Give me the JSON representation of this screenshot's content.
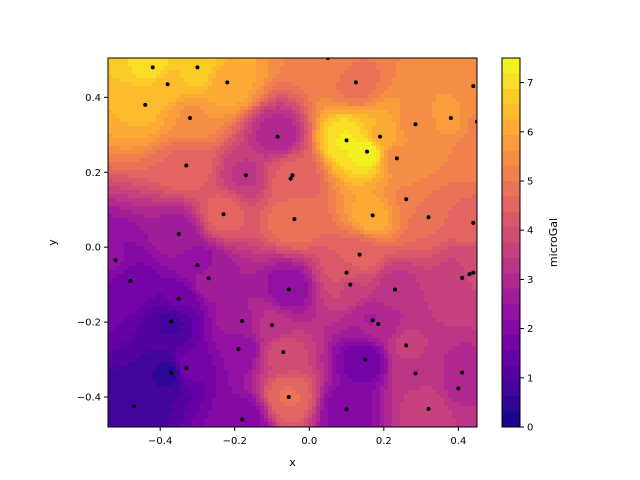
{
  "chart_data": {
    "type": "heatmap",
    "subtype": "filled-contour-triangulation",
    "xlabel": "x",
    "ylabel": "y",
    "xlim": [
      -0.54,
      0.45
    ],
    "ylim": [
      -0.48,
      0.505
    ],
    "xticks": [
      -0.4,
      -0.2,
      0.0,
      0.2,
      0.4
    ],
    "xtick_labels": [
      "−0.4",
      "−0.2",
      "0.0",
      "0.2",
      "0.4"
    ],
    "yticks": [
      -0.4,
      -0.2,
      0.0,
      0.2,
      0.4
    ],
    "ytick_labels": [
      "−0.4",
      "−0.2",
      "0.0",
      "0.2",
      "0.4"
    ],
    "colorbar": {
      "label": "microGal",
      "range": [
        0,
        7.5
      ],
      "ticks": [
        0,
        1,
        2,
        3,
        4,
        5,
        6,
        7
      ],
      "tick_labels": [
        "0",
        "1",
        "2",
        "3",
        "4",
        "5",
        "6",
        "7"
      ],
      "colormap": "plasma",
      "levels": 24
    },
    "points": [
      {
        "x": -0.42,
        "y": 0.48,
        "v": 7.0
      },
      {
        "x": -0.38,
        "y": 0.435,
        "v": 6.4
      },
      {
        "x": -0.3,
        "y": 0.48,
        "v": 6.8
      },
      {
        "x": -0.22,
        "y": 0.44,
        "v": 6.1
      },
      {
        "x": 0.05,
        "y": 0.505,
        "v": 5.3
      },
      {
        "x": 0.125,
        "y": 0.44,
        "v": 4.9
      },
      {
        "x": 0.44,
        "y": 0.43,
        "v": 5.6
      },
      {
        "x": -0.44,
        "y": 0.38,
        "v": 6.3
      },
      {
        "x": -0.32,
        "y": 0.345,
        "v": 5.6
      },
      {
        "x": 0.38,
        "y": 0.345,
        "v": 5.7
      },
      {
        "x": 0.285,
        "y": 0.328,
        "v": 5.5
      },
      {
        "x": 0.45,
        "y": 0.335,
        "v": 5.3
      },
      {
        "x": -0.085,
        "y": 0.295,
        "v": 2.9
      },
      {
        "x": 0.1,
        "y": 0.285,
        "v": 7.2
      },
      {
        "x": 0.19,
        "y": 0.295,
        "v": 6.2
      },
      {
        "x": 0.155,
        "y": 0.255,
        "v": 7.4
      },
      {
        "x": 0.455,
        "y": 0.255,
        "v": 5.1
      },
      {
        "x": 0.235,
        "y": 0.237,
        "v": 5.5
      },
      {
        "x": -0.33,
        "y": 0.218,
        "v": 4.6
      },
      {
        "x": -0.17,
        "y": 0.192,
        "v": 3.4
      },
      {
        "x": -0.045,
        "y": 0.192,
        "v": 4.4
      },
      {
        "x": -0.05,
        "y": 0.183,
        "v": 4.5
      },
      {
        "x": 0.26,
        "y": 0.128,
        "v": 5.3
      },
      {
        "x": -0.23,
        "y": 0.088,
        "v": 4.5
      },
      {
        "x": 0.17,
        "y": 0.085,
        "v": 6.1
      },
      {
        "x": 0.32,
        "y": 0.08,
        "v": 4.7
      },
      {
        "x": -0.04,
        "y": 0.075,
        "v": 5.0
      },
      {
        "x": 0.44,
        "y": 0.065,
        "v": 4.6
      },
      {
        "x": -0.35,
        "y": 0.035,
        "v": 2.7
      },
      {
        "x": 0.135,
        "y": -0.02,
        "v": 4.6
      },
      {
        "x": -0.52,
        "y": -0.035,
        "v": 2.2
      },
      {
        "x": -0.3,
        "y": -0.048,
        "v": 2.3
      },
      {
        "x": 0.1,
        "y": -0.068,
        "v": 4.3
      },
      {
        "x": 0.44,
        "y": -0.068,
        "v": 3.8
      },
      {
        "x": 0.43,
        "y": -0.072,
        "v": 3.9
      },
      {
        "x": 0.41,
        "y": -0.082,
        "v": 3.5
      },
      {
        "x": -0.27,
        "y": -0.083,
        "v": 2.8
      },
      {
        "x": -0.48,
        "y": -0.09,
        "v": 1.7
      },
      {
        "x": 0.11,
        "y": -0.1,
        "v": 3.7
      },
      {
        "x": -0.055,
        "y": -0.113,
        "v": 2.3
      },
      {
        "x": 0.23,
        "y": -0.113,
        "v": 3.3
      },
      {
        "x": -0.35,
        "y": -0.138,
        "v": 1.6
      },
      {
        "x": -0.18,
        "y": -0.197,
        "v": 2.8
      },
      {
        "x": -0.37,
        "y": -0.198,
        "v": 0.9
      },
      {
        "x": 0.17,
        "y": -0.195,
        "v": 2.8
      },
      {
        "x": 0.185,
        "y": -0.205,
        "v": 2.9
      },
      {
        "x": -0.1,
        "y": -0.208,
        "v": 3.2
      },
      {
        "x": 0.26,
        "y": -0.262,
        "v": 3.5
      },
      {
        "x": -0.19,
        "y": -0.272,
        "v": 2.2
      },
      {
        "x": -0.07,
        "y": -0.28,
        "v": 3.9
      },
      {
        "x": 0.15,
        "y": -0.3,
        "v": 1.6
      },
      {
        "x": -0.33,
        "y": -0.323,
        "v": 1.7
      },
      {
        "x": -0.37,
        "y": -0.335,
        "v": 0.5
      },
      {
        "x": 0.285,
        "y": -0.337,
        "v": 3.4
      },
      {
        "x": 0.41,
        "y": -0.335,
        "v": 3.0
      },
      {
        "x": 0.4,
        "y": -0.377,
        "v": 3.1
      },
      {
        "x": -0.055,
        "y": -0.4,
        "v": 4.7
      },
      {
        "x": 0.32,
        "y": -0.432,
        "v": 3.7
      },
      {
        "x": 0.1,
        "y": -0.433,
        "v": 2.0
      },
      {
        "x": -0.47,
        "y": -0.425,
        "v": 0.7
      },
      {
        "x": -0.18,
        "y": -0.46,
        "v": 2.0
      }
    ]
  }
}
